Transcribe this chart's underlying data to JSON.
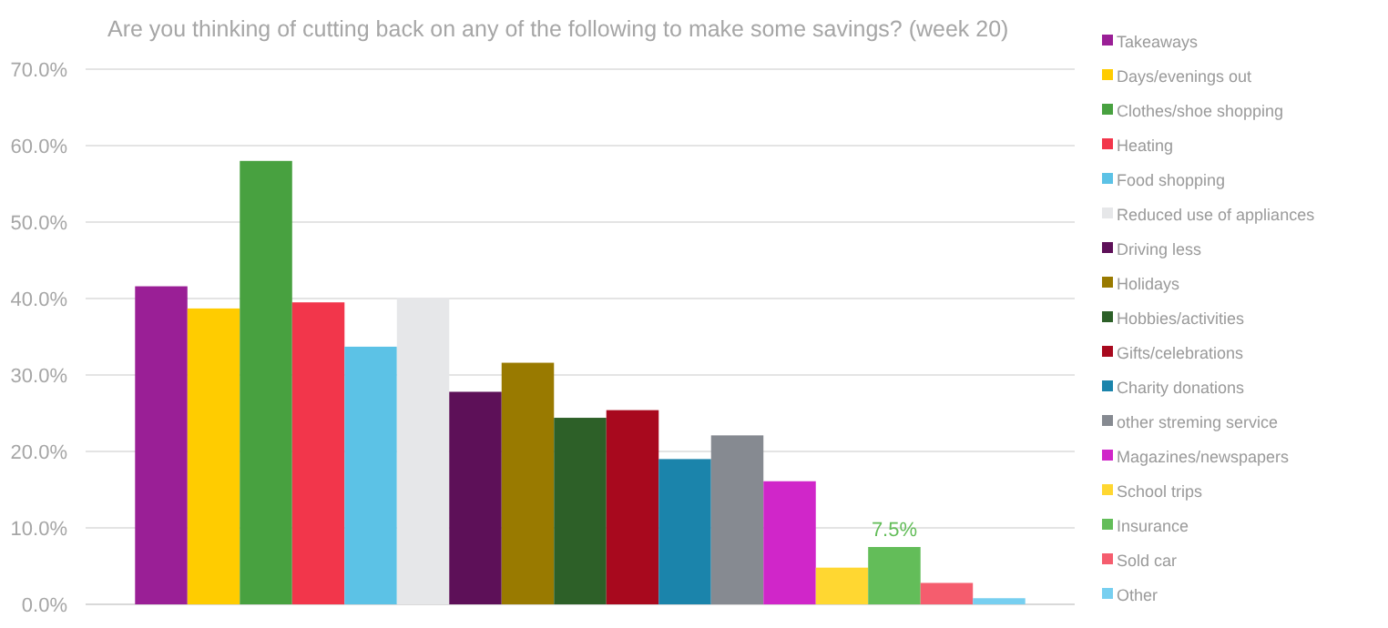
{
  "chart_data": {
    "type": "bar",
    "title": "Are you thinking of cutting back on any of the following to make some savings? (week 20)",
    "categories": [
      null
    ],
    "ylim": [
      0,
      70
    ],
    "yticks": [
      {
        "value": 0,
        "label": "0.0%"
      },
      {
        "value": 10,
        "label": "10.0%"
      },
      {
        "value": 20,
        "label": "20.0%"
      },
      {
        "value": 30,
        "label": "30.0%"
      },
      {
        "value": 40,
        "label": "40.0%"
      },
      {
        "value": 50,
        "label": "50.0%"
      },
      {
        "value": 60,
        "label": "60.0%"
      },
      {
        "value": 70,
        "label": "70.0%"
      }
    ],
    "grid": "y",
    "legend": "right",
    "series": [
      {
        "name": "Takeaways",
        "color": "#9a1f96",
        "values": [
          41.6
        ]
      },
      {
        "name": "Days/evenings out",
        "color": "#ffcc00",
        "values": [
          38.7
        ]
      },
      {
        "name": "Clothes/shoe shopping",
        "color": "#48a140",
        "values": [
          58.0
        ]
      },
      {
        "name": "Heating",
        "color": "#f2364b",
        "values": [
          39.5
        ]
      },
      {
        "name": "Food shopping",
        "color": "#5cc2e6",
        "values": [
          33.7
        ]
      },
      {
        "name": "Reduced use of appliances",
        "color": "#e6e7e9",
        "values": [
          40.1
        ]
      },
      {
        "name": "Driving less",
        "color": "#5d1058",
        "values": [
          27.8
        ]
      },
      {
        "name": "Holidays",
        "color": "#997a00",
        "values": [
          31.6
        ]
      },
      {
        "name": "Hobbies/activities",
        "color": "#2d6028",
        "values": [
          24.4
        ]
      },
      {
        "name": "Gifts/celebrations",
        "color": "#a8091e",
        "values": [
          25.4
        ]
      },
      {
        "name": "Charity donations",
        "color": "#1b84ab",
        "values": [
          19.0
        ]
      },
      {
        "name": "other streming service",
        "color": "#868a91",
        "values": [
          22.1
        ]
      },
      {
        "name": "Magazines/newspapers",
        "color": "#d026c9",
        "values": [
          16.1
        ]
      },
      {
        "name": "School trips",
        "color": "#ffd731",
        "values": [
          4.8
        ]
      },
      {
        "name": "Insurance",
        "color": "#63bd59",
        "values": [
          7.5
        ],
        "value_labels": [
          "7.5%"
        ]
      },
      {
        "name": "Sold car",
        "color": "#f55d6e",
        "values": [
          2.8
        ]
      },
      {
        "name": "Other",
        "color": "#77cff0",
        "values": [
          0.8
        ]
      }
    ]
  }
}
